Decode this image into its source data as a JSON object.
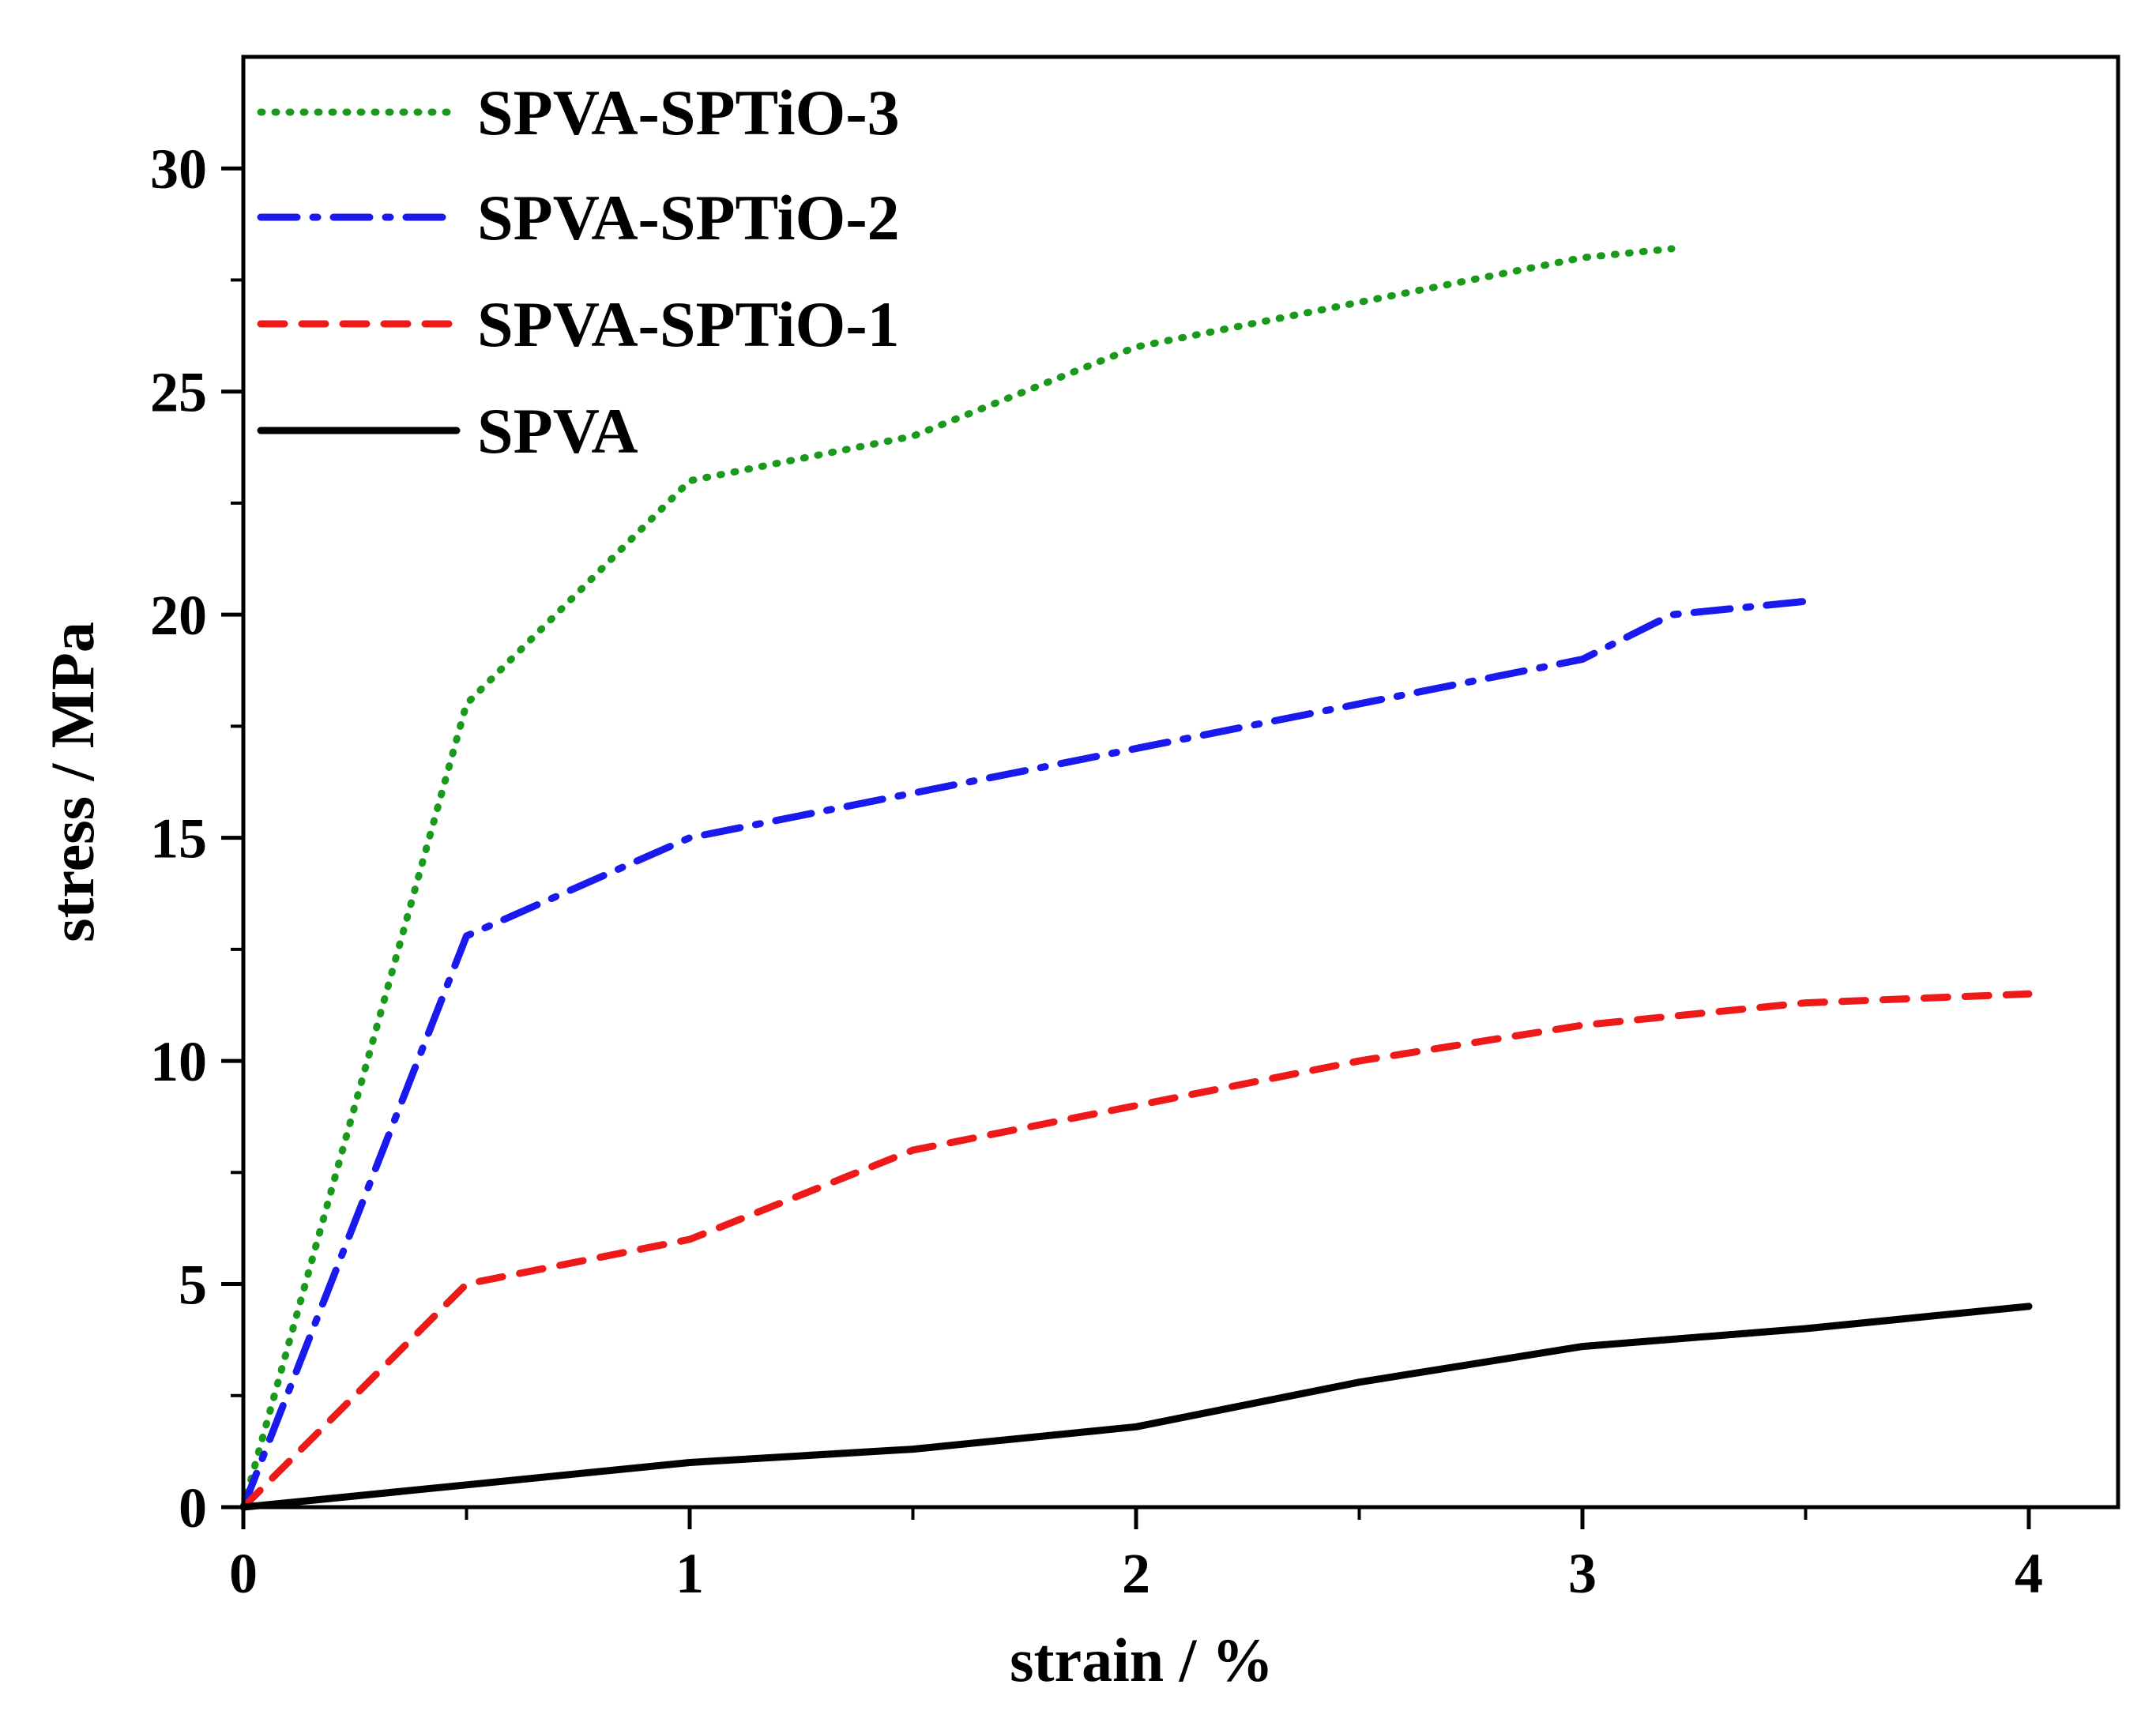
{
  "chart_data": {
    "type": "line",
    "title": "",
    "xlabel": "strain / %",
    "ylabel": "stress / MPa",
    "xlim": [
      0,
      4.2
    ],
    "ylim": [
      0,
      32.5
    ],
    "x_ticks": [
      0,
      1,
      2,
      3,
      4
    ],
    "x_tick_labels": [
      "0",
      "1",
      "2",
      "3",
      "4"
    ],
    "y_ticks": [
      0,
      5,
      10,
      15,
      20,
      25,
      30
    ],
    "y_tick_labels": [
      "0",
      "5",
      "10",
      "15",
      "20",
      "25",
      "30"
    ],
    "legend_position": "top-left",
    "series": [
      {
        "name": "SPVA-SPTiO-3",
        "color": "#1a9a1a",
        "style": "dotted",
        "x": [
          0,
          0.5,
          1.0,
          1.5,
          2.0,
          2.5,
          3.0,
          3.2
        ],
        "y": [
          0,
          18,
          23,
          24,
          26,
          27,
          28,
          28.2
        ]
      },
      {
        "name": "SPVA-SPTiO-2",
        "color": "#1a1aee",
        "style": "dashdot",
        "x": [
          0,
          0.5,
          1.0,
          1.5,
          2.0,
          2.5,
          3.0,
          3.2,
          3.5
        ],
        "y": [
          0,
          12.8,
          15,
          16,
          17,
          18,
          19,
          20,
          20.3
        ]
      },
      {
        "name": "SPVA-SPTiO-1",
        "color": "#ee1a1a",
        "style": "dashed",
        "x": [
          0,
          0.5,
          1.0,
          1.5,
          2.0,
          2.5,
          3.0,
          3.5,
          4.0
        ],
        "y": [
          0,
          5,
          6,
          8,
          9,
          10,
          10.8,
          11.3,
          11.5
        ]
      },
      {
        "name": "SPVA",
        "color": "#000000",
        "style": "solid",
        "x": [
          0,
          0.5,
          1.0,
          1.5,
          2.0,
          2.5,
          3.0,
          3.5,
          4.0
        ],
        "y": [
          0,
          0.5,
          1.0,
          1.3,
          1.8,
          2.8,
          3.6,
          4.0,
          4.5
        ]
      }
    ]
  }
}
